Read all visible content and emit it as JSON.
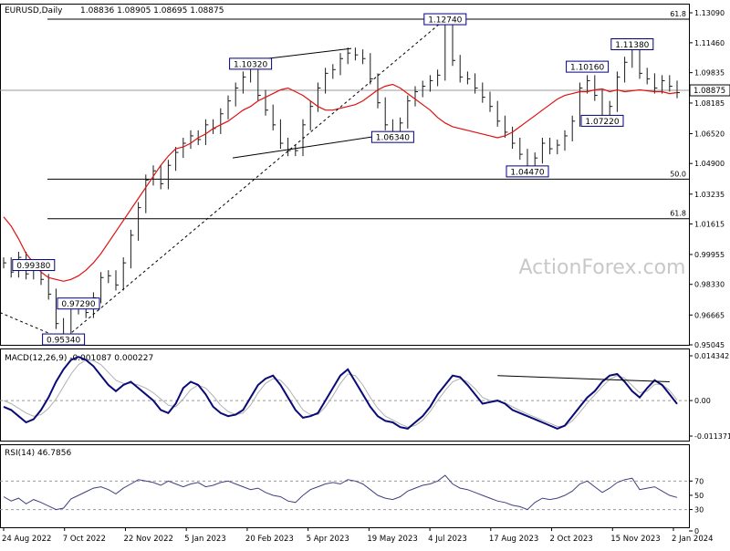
{
  "header": {
    "symbol": "EURUSD,Daily",
    "ohlc": "1.08836 1.08905 1.08695 1.08875",
    "macd_label": "MACD(12,26,9) -0.001087 0.000227",
    "rsi_label": "RSI(14) 46.7856",
    "watermark": "ActionForex.com"
  },
  "colors": {
    "price": "#1a1a1a",
    "ma": "#e01010",
    "macd": "#0a0a78",
    "signal": "#b0b0b0",
    "rsi": "#404080",
    "axis": "#000000",
    "label_border": "#000080",
    "line": "#000000"
  },
  "chart_data": [
    {
      "type": "line",
      "title": "EURUSD,Daily",
      "ylim": [
        0.95045,
        1.1309
      ],
      "y_ticks": [
        "1.13090",
        "1.11460",
        "1.09835",
        "1.08185",
        "1.06520",
        "1.04900",
        "1.03235",
        "1.01615",
        "0.99955",
        "0.98330",
        "0.96665",
        "0.95045"
      ],
      "x_ticks": [
        "24 Aug 2022",
        "7 Oct 2022",
        "22 Nov 2022",
        "5 Jan 2023",
        "20 Feb 2023",
        "5 Apr 2023",
        "19 May 2023",
        "4 Jul 2023",
        "17 Aug 2023",
        "2 Oct 2023",
        "15 Nov 2023",
        "2 Jan 2024"
      ],
      "current_price": "1.08875",
      "series": [
        {
          "values": [
            0.995,
            0.99,
            0.998,
            0.989,
            0.9934,
            0.986,
            0.978,
            0.962,
            0.9534,
            0.97,
            0.9729,
            0.968,
            0.976,
            0.987,
            0.988,
            0.983,
            0.995,
            1.01,
            1.025,
            1.04,
            1.045,
            1.038,
            1.048,
            1.055,
            1.06,
            1.064,
            1.062,
            1.07,
            1.068,
            1.076,
            1.083,
            1.09,
            1.096,
            1.1032,
            1.086,
            1.078,
            1.07,
            1.06,
            1.056,
            1.056,
            1.07,
            1.08,
            1.09,
            1.098,
            1.1,
            1.106,
            1.109,
            1.108,
            1.106,
            1.095,
            1.082,
            1.07,
            1.0634,
            1.071,
            1.083,
            1.088,
            1.091,
            1.094,
            1.097,
            1.1274,
            1.105,
            1.096,
            1.095,
            1.09,
            1.085,
            1.08,
            1.072,
            1.066,
            1.06,
            1.054,
            1.0447,
            1.052,
            1.06,
            1.057,
            1.059,
            1.064,
            1.072,
            1.09,
            1.094,
            1.086,
            1.072,
            1.08,
            1.096,
            1.104,
            1.1138,
            1.098,
            1.095,
            1.09,
            1.094,
            1.091,
            1.0875
          ]
        },
        {
          "values": [
            1.02,
            1.015,
            1.008,
            1.0,
            0.995,
            0.99,
            0.987,
            0.986,
            0.985,
            0.986,
            0.988,
            0.991,
            0.995,
            1.0,
            1.006,
            1.012,
            1.018,
            1.024,
            1.03,
            1.036,
            1.042,
            1.048,
            1.053,
            1.057,
            1.058,
            1.06,
            1.063,
            1.065,
            1.068,
            1.07,
            1.072,
            1.075,
            1.078,
            1.08,
            1.083,
            1.085,
            1.087,
            1.089,
            1.09,
            1.088,
            1.086,
            1.083,
            1.08,
            1.078,
            1.078,
            1.079,
            1.08,
            1.081,
            1.083,
            1.086,
            1.089,
            1.091,
            1.092,
            1.09,
            1.087,
            1.084,
            1.081,
            1.078,
            1.074,
            1.071,
            1.069,
            1.068,
            1.067,
            1.066,
            1.065,
            1.064,
            1.063,
            1.064,
            1.066,
            1.069,
            1.072,
            1.075,
            1.078,
            1.081,
            1.084,
            1.086,
            1.087,
            1.088,
            1.088,
            1.089,
            1.0895,
            1.088,
            1.089,
            1.088,
            1.0885,
            1.089,
            1.0885,
            1.088,
            1.088,
            1.087,
            1.0875
          ]
        }
      ],
      "horizontal_lines": [
        {
          "label": "61.8",
          "value": 1.1274
        },
        {
          "label": "50.0",
          "value": 1.0405
        },
        {
          "label": "61.8",
          "value": 1.019
        },
        {
          "label": "",
          "value": 1.08875
        }
      ],
      "annotations": [
        {
          "text": "1.12740",
          "x_index": 59,
          "y": 1.1274
        },
        {
          "text": "1.11380",
          "x_index": 84,
          "y": 1.1138
        },
        {
          "text": "1.10320",
          "x_index": 33,
          "y": 1.1032
        },
        {
          "text": "1.10160",
          "x_index": 78,
          "y": 1.1016
        },
        {
          "text": "1.07220",
          "x_index": 80,
          "y": 1.0722
        },
        {
          "text": "1.06340",
          "x_index": 52,
          "y": 1.0634
        },
        {
          "text": "1.04470",
          "x_index": 70,
          "y": 1.0447
        },
        {
          "text": "0.99380",
          "x_index": 4,
          "y": 0.9938
        },
        {
          "text": "0.97290",
          "x_index": 10,
          "y": 0.9729
        },
        {
          "text": "0.95340",
          "x_index": 8,
          "y": 0.9534
        }
      ]
    },
    {
      "type": "line",
      "title": "MACD(12,26,9) -0.001087 0.000227",
      "ylim": [
        -0.011371,
        0.014342
      ],
      "y_ticks": [
        "0.014342",
        "0.00",
        "-0.011371"
      ],
      "series": [
        {
          "values": [
            -0.002,
            -0.003,
            -0.005,
            -0.007,
            -0.006,
            -0.003,
            0.001,
            0.006,
            0.01,
            0.013,
            0.014,
            0.013,
            0.011,
            0.008,
            0.005,
            0.003,
            0.005,
            0.006,
            0.004,
            0.002,
            0.0,
            -0.003,
            -0.004,
            -0.001,
            0.004,
            0.006,
            0.005,
            0.002,
            -0.002,
            -0.004,
            -0.005,
            -0.0045,
            -0.003,
            0.001,
            0.005,
            0.007,
            0.008,
            0.005,
            0.001,
            -0.003,
            -0.0055,
            -0.005,
            -0.004,
            0.0,
            0.004,
            0.008,
            0.01,
            0.006,
            0.002,
            -0.002,
            -0.005,
            -0.0065,
            -0.007,
            -0.0085,
            -0.009,
            -0.007,
            -0.005,
            -0.002,
            0.002,
            0.005,
            0.008,
            0.0075,
            0.005,
            0.002,
            -0.001,
            -0.0005,
            0.0,
            -0.001,
            -0.003,
            -0.004,
            -0.005,
            -0.006,
            -0.007,
            -0.008,
            -0.009,
            -0.008,
            -0.005,
            -0.002,
            0.001,
            0.003,
            0.006,
            0.008,
            0.0085,
            0.006,
            0.003,
            0.001,
            0.004,
            0.0065,
            0.005,
            0.002,
            -0.0011
          ]
        },
        {
          "values": [
            0.0,
            -0.001,
            -0.0025,
            -0.004,
            -0.005,
            -0.0045,
            -0.0025,
            0.0005,
            0.0045,
            0.0085,
            0.0115,
            0.013,
            0.0128,
            0.0115,
            0.009,
            0.0065,
            0.0055,
            0.0055,
            0.005,
            0.004,
            0.0025,
            0.0005,
            -0.0015,
            -0.002,
            0.0005,
            0.0035,
            0.005,
            0.004,
            0.0015,
            -0.0015,
            -0.0035,
            -0.0045,
            -0.004,
            -0.0015,
            0.0025,
            0.0055,
            0.007,
            0.0065,
            0.004,
            0.0005,
            -0.003,
            -0.0045,
            -0.0045,
            -0.002,
            0.0015,
            0.0055,
            0.0085,
            0.008,
            0.005,
            0.001,
            -0.0025,
            -0.005,
            -0.0062,
            -0.0075,
            -0.0085,
            -0.008,
            -0.0063,
            -0.0035,
            0.0,
            0.0032,
            0.006,
            0.007,
            0.006,
            0.0038,
            0.001,
            0.0,
            -0.0002,
            -0.0007,
            -0.002,
            -0.0032,
            -0.0043,
            -0.0053,
            -0.0063,
            -0.0073,
            -0.0083,
            -0.0082,
            -0.0065,
            -0.0038,
            -0.0008,
            0.0018,
            0.0045,
            0.0068,
            0.008,
            0.0072,
            0.0048,
            0.0025,
            0.003,
            0.0052,
            0.0052,
            0.0032,
            0.0002
          ]
        }
      ],
      "trendline": {
        "from_index": 66,
        "from_y": 0.008,
        "to_index": 89,
        "to_y": 0.006
      }
    },
    {
      "type": "line",
      "title": "RSI(14) 46.7856",
      "ylim": [
        0,
        100
      ],
      "y_ticks": [
        "70",
        "50",
        "30",
        "0"
      ],
      "series": [
        {
          "values": [
            48,
            42,
            46,
            38,
            44,
            40,
            35,
            30,
            32,
            45,
            50,
            55,
            60,
            62,
            58,
            52,
            60,
            66,
            72,
            70,
            68,
            64,
            70,
            66,
            62,
            66,
            68,
            62,
            64,
            68,
            70,
            66,
            62,
            58,
            60,
            54,
            50,
            48,
            42,
            40,
            50,
            58,
            62,
            66,
            68,
            66,
            72,
            70,
            66,
            58,
            50,
            46,
            44,
            48,
            56,
            60,
            64,
            66,
            70,
            78,
            66,
            60,
            58,
            54,
            50,
            46,
            42,
            40,
            36,
            34,
            30,
            40,
            46,
            44,
            46,
            50,
            56,
            66,
            70,
            62,
            54,
            60,
            68,
            72,
            74,
            58,
            60,
            62,
            56,
            50,
            47
          ]
        }
      ]
    }
  ]
}
